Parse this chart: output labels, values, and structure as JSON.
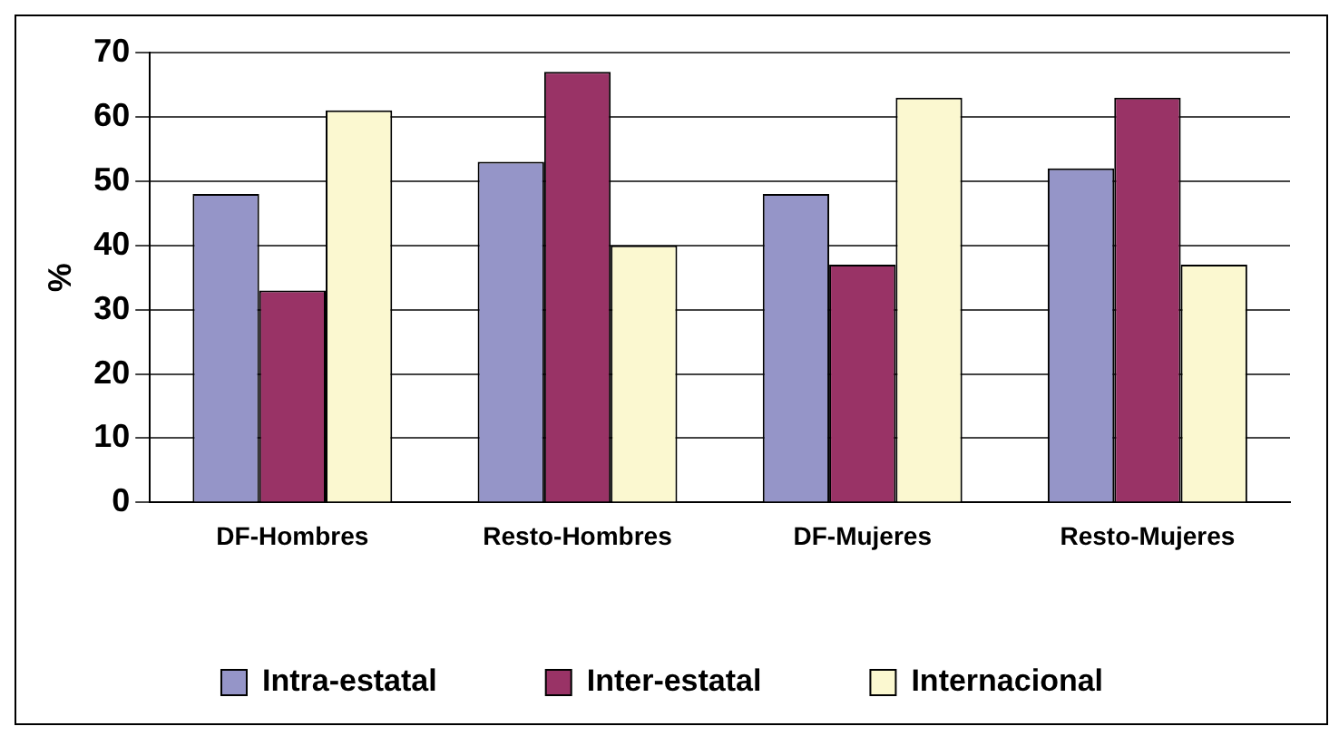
{
  "chart_data": {
    "type": "bar",
    "ylabel": "%",
    "categories": [
      "DF-Hombres",
      "Resto-Hombres",
      "DF-Mujeres",
      "Resto-Mujeres"
    ],
    "series": [
      {
        "name": "Intra-estatal",
        "color": "#9595c8",
        "values": [
          48,
          53,
          48,
          52
        ]
      },
      {
        "name": "Inter-estatal",
        "color": "#993366",
        "values": [
          33,
          67,
          37,
          63
        ]
      },
      {
        "name": "Internacional",
        "color": "#fbf8d0",
        "values": [
          61,
          40,
          63,
          37
        ]
      }
    ],
    "ylim": [
      0,
      70
    ],
    "yticks": [
      0,
      10,
      20,
      30,
      40,
      50,
      60,
      70
    ],
    "grid": "y",
    "legend": "bottom"
  }
}
